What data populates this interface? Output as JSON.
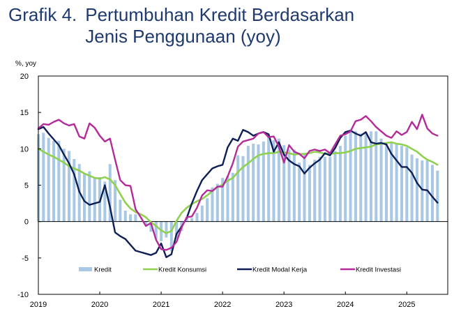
{
  "figure": {
    "label": "Grafik 4.",
    "title": "Pertumbuhan Kredit Berdasarkan Jenis Penggunaan (yoy)"
  },
  "colors": {
    "kredit": "#a9c8e6",
    "konsumsi": "#8fd14f",
    "modal_kerja": "#0d1f55",
    "investasi": "#b42a9a",
    "title": "#1f3a6e"
  },
  "chart_data": {
    "type": "bar",
    "ylabel": "%, yoy",
    "ylim": [
      -10,
      20
    ],
    "yticks": [
      -10,
      -5,
      0,
      5,
      10,
      15,
      20
    ],
    "xlim": [
      2019,
      2025.667
    ],
    "xticks": [
      "2019",
      "2020",
      "2021",
      "2022",
      "2023",
      "2024",
      "2025"
    ],
    "grid": false,
    "legend_position": "bottom-inside",
    "x": [
      2019.0,
      2019.083,
      2019.167,
      2019.25,
      2019.333,
      2019.417,
      2019.5,
      2019.583,
      2019.667,
      2019.75,
      2019.833,
      2019.917,
      2020.0,
      2020.083,
      2020.167,
      2020.25,
      2020.333,
      2020.417,
      2020.5,
      2020.583,
      2020.667,
      2020.75,
      2020.833,
      2020.917,
      2021.0,
      2021.083,
      2021.167,
      2021.25,
      2021.333,
      2021.417,
      2021.5,
      2021.583,
      2021.667,
      2021.75,
      2021.833,
      2021.917,
      2022.0,
      2022.083,
      2022.167,
      2022.25,
      2022.333,
      2022.417,
      2022.5,
      2022.583,
      2022.667,
      2022.75,
      2022.833,
      2022.917,
      2023.0,
      2023.083,
      2023.167,
      2023.25,
      2023.333,
      2023.417,
      2023.5,
      2023.583,
      2023.667,
      2023.75,
      2023.833,
      2023.917,
      2024.0,
      2024.083,
      2024.167,
      2024.25,
      2024.333,
      2024.417,
      2024.5,
      2024.583,
      2024.667,
      2024.75,
      2024.833,
      2024.917,
      2025.0,
      2025.083,
      2025.167,
      2025.25,
      2025.333,
      2025.417,
      2025.5
    ],
    "series": [
      {
        "name": "Kredit",
        "kind": "bar",
        "values": [
          12.0,
          12.2,
          11.5,
          11.1,
          11.1,
          10.0,
          9.7,
          8.6,
          7.9,
          6.5,
          6.9,
          6.1,
          6.1,
          5.5,
          7.9,
          5.7,
          3.0,
          1.5,
          1.0,
          1.0,
          0.1,
          -0.5,
          -1.4,
          -2.4,
          -2.7,
          -2.2,
          -4.1,
          -2.3,
          -1.3,
          0.6,
          0.5,
          1.2,
          2.2,
          3.2,
          4.7,
          5.2,
          6.0,
          6.3,
          6.7,
          9.1,
          9.0,
          10.4,
          10.7,
          10.6,
          11.0,
          11.7,
          11.2,
          11.4,
          10.5,
          9.9,
          9.9,
          8.1,
          9.4,
          7.8,
          8.5,
          8.9,
          8.9,
          8.9,
          9.7,
          10.4,
          11.8,
          12.4,
          12.4,
          12.1,
          12.2,
          12.4,
          12.4,
          11.4,
          10.8,
          10.9,
          10.8,
          10.4,
          10.2,
          9.2,
          8.7,
          8.4,
          8.4,
          7.8,
          7.0
        ]
      },
      {
        "name": "Kredit Konsumsi",
        "kind": "line",
        "values": [
          10.0,
          9.6,
          9.2,
          8.9,
          8.5,
          8.1,
          7.6,
          7.3,
          7.0,
          6.6,
          6.3,
          6.0,
          5.9,
          6.1,
          5.8,
          5.0,
          3.8,
          2.6,
          1.8,
          1.3,
          1.0,
          0.6,
          -0.1,
          -0.6,
          -1.2,
          -1.6,
          -1.3,
          0.1,
          1.2,
          1.9,
          2.4,
          2.8,
          3.1,
          3.6,
          4.2,
          4.7,
          5.1,
          5.6,
          6.0,
          6.8,
          7.5,
          8.0,
          8.6,
          9.1,
          9.3,
          9.4,
          9.4,
          9.6,
          9.5,
          9.4,
          9.2,
          9.3,
          9.3,
          9.4,
          9.6,
          9.5,
          9.3,
          9.3,
          9.4,
          9.4,
          9.5,
          9.7,
          10.0,
          10.1,
          10.2,
          10.3,
          10.6,
          10.7,
          10.8,
          10.9,
          10.7,
          10.6,
          10.4,
          10.0,
          9.6,
          9.0,
          8.5,
          8.2,
          7.8
        ]
      },
      {
        "name": "Kredit Modal Kerja",
        "kind": "line",
        "values": [
          12.7,
          13.0,
          12.1,
          11.3,
          10.5,
          9.2,
          8.0,
          6.5,
          4.1,
          2.8,
          2.3,
          2.5,
          2.7,
          5.0,
          2.0,
          -1.5,
          -2.0,
          -2.4,
          -3.2,
          -4.0,
          -4.2,
          -4.4,
          -4.6,
          -4.3,
          -3.0,
          -4.9,
          -4.5,
          -1.7,
          -0.7,
          0.5,
          2.5,
          4.2,
          5.7,
          6.5,
          7.3,
          7.6,
          7.8,
          10.2,
          11.4,
          11.1,
          12.6,
          12.3,
          11.8,
          12.1,
          12.3,
          12.0,
          9.6,
          10.9,
          9.2,
          8.4,
          7.9,
          7.6,
          6.6,
          7.4,
          8.0,
          8.5,
          9.4,
          9.1,
          10.1,
          11.5,
          12.3,
          12.5,
          12.1,
          11.8,
          12.3,
          10.9,
          10.7,
          10.8,
          10.6,
          9.3,
          8.4,
          7.5,
          7.5,
          6.7,
          5.3,
          4.4,
          4.3,
          3.4,
          2.6
        ]
      },
      {
        "name": "Kredit Investasi",
        "kind": "line",
        "values": [
          12.8,
          13.4,
          13.3,
          13.7,
          14.0,
          13.5,
          13.2,
          13.4,
          11.7,
          11.4,
          13.5,
          12.9,
          11.8,
          11.0,
          11.4,
          8.5,
          5.7,
          5.0,
          4.9,
          1.7,
          0.6,
          -0.6,
          -0.2,
          -2.5,
          -3.8,
          -3.9,
          -3.6,
          -2.8,
          -0.8,
          0.6,
          0.7,
          1.9,
          3.6,
          4.3,
          4.2,
          4.8,
          4.8,
          6.2,
          8.0,
          10.3,
          11.0,
          11.2,
          11.4,
          12.1,
          12.3,
          11.6,
          11.7,
          10.3,
          8.1,
          10.5,
          9.6,
          9.3,
          8.7,
          9.7,
          9.9,
          9.7,
          9.9,
          9.4,
          10.6,
          11.8,
          12.0,
          12.4,
          13.8,
          14.0,
          14.5,
          13.8,
          13.0,
          12.4,
          11.8,
          11.5,
          12.4,
          11.9,
          12.3,
          13.7,
          12.7,
          14.7,
          12.8,
          12.1,
          11.8
        ]
      }
    ]
  }
}
